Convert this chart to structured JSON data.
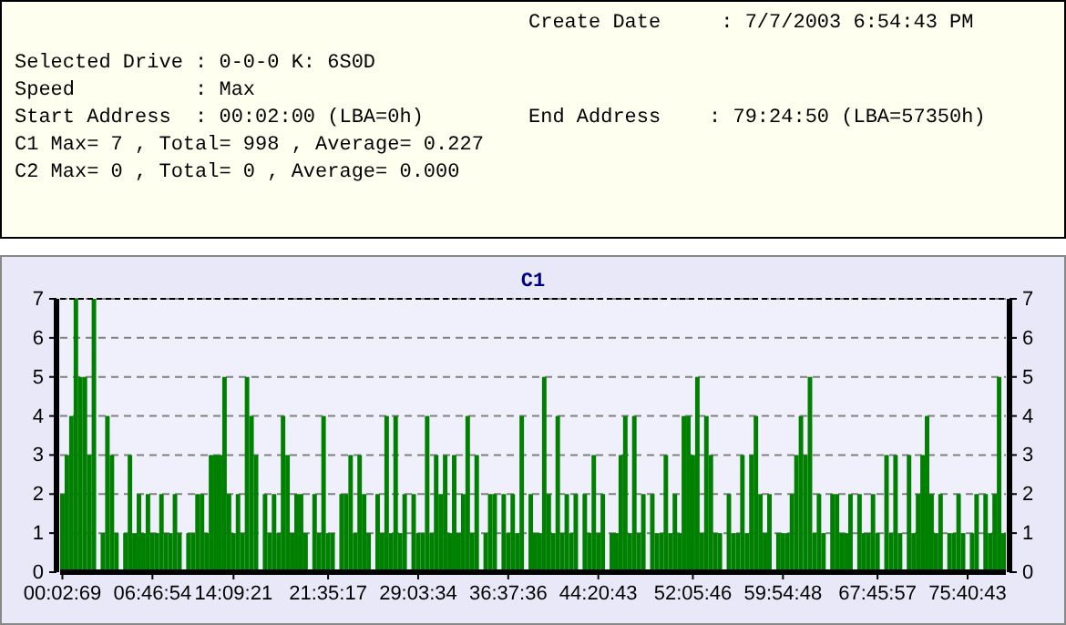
{
  "chart_data": {
    "type": "bar",
    "title": "C1",
    "annotations": [
      "Create Date     : 7/7/2003 6:54:43 PM",
      "Selected Drive : 0-0-0 K: 6S0D",
      "Speed          : Max",
      "Start Address  : 00:02:00 (LBA=0h)",
      "End Address    : 79:24:50 (LBA=57350h)",
      "C1 Max= 7 , Total= 998 , Average= 0.227",
      "C2 Max= 0 , Total= 0 , Average= 0.000"
    ],
    "categories": [
      "00:02:69",
      null,
      null,
      null,
      null,
      null,
      null,
      null,
      null,
      null,
      null,
      null,
      null,
      null,
      null,
      null,
      null,
      null,
      null,
      null,
      "06:46:54",
      null,
      null,
      null,
      null,
      null,
      null,
      null,
      null,
      null,
      null,
      null,
      null,
      null,
      null,
      null,
      null,
      null,
      "14:09:21",
      null,
      null,
      null,
      null,
      null,
      null,
      null,
      null,
      null,
      null,
      null,
      null,
      null,
      null,
      null,
      null,
      null,
      null,
      null,
      null,
      "21:35:17",
      null,
      null,
      null,
      null,
      null,
      null,
      null,
      null,
      null,
      null,
      null,
      null,
      null,
      null,
      null,
      null,
      null,
      null,
      null,
      "29:03:34",
      null,
      null,
      null,
      null,
      null,
      null,
      null,
      null,
      null,
      null,
      null,
      null,
      null,
      null,
      null,
      null,
      null,
      null,
      null,
      "36:37:36",
      null,
      null,
      null,
      null,
      null,
      null,
      null,
      null,
      null,
      null,
      null,
      null,
      null,
      null,
      null,
      null,
      null,
      null,
      null,
      "44:20:43",
      null,
      null,
      null,
      null,
      null,
      null,
      null,
      null,
      null,
      null,
      null,
      null,
      null,
      null,
      null,
      null,
      null,
      null,
      null,
      null,
      "52:05:46",
      null,
      null,
      null,
      null,
      null,
      null,
      null,
      null,
      null,
      null,
      null,
      null,
      null,
      null,
      null,
      null,
      null,
      null,
      null,
      "59:54:48",
      null,
      null,
      null,
      null,
      null,
      null,
      null,
      null,
      null,
      null,
      null,
      null,
      null,
      null,
      null,
      null,
      null,
      null,
      null,
      null,
      "67:45:57",
      null,
      null,
      null,
      null,
      null,
      null,
      null,
      null,
      null,
      null,
      null,
      null,
      null,
      null,
      null,
      null,
      null,
      null,
      null,
      "75:40:43",
      null,
      null,
      null,
      null,
      null,
      null,
      null,
      null
    ],
    "values": [
      2,
      3,
      4,
      7,
      5,
      5,
      3,
      7,
      0,
      1,
      4,
      3,
      1,
      0,
      1,
      3,
      1,
      2,
      1,
      2,
      1,
      1,
      2,
      1,
      1,
      2,
      1,
      0,
      1,
      1,
      2,
      2,
      1,
      3,
      3,
      3,
      5,
      2,
      1,
      2,
      1,
      5,
      4,
      3,
      0,
      2,
      1,
      2,
      1,
      4,
      3,
      1,
      2,
      2,
      1,
      0,
      2,
      1,
      4,
      1,
      1,
      0,
      2,
      2,
      3,
      1,
      3,
      2,
      1,
      0,
      2,
      1,
      4,
      1,
      4,
      1,
      2,
      0,
      2,
      1,
      1,
      4,
      1,
      3,
      2,
      3,
      1,
      3,
      1,
      2,
      4,
      1,
      3,
      0,
      1,
      2,
      2,
      0,
      2,
      1,
      2,
      1,
      4,
      0,
      2,
      1,
      1,
      5,
      2,
      1,
      4,
      1,
      2,
      1,
      2,
      0,
      2,
      1,
      3,
      1,
      2,
      0,
      1,
      1,
      3,
      4,
      1,
      4,
      1,
      2,
      0,
      2,
      1,
      1,
      3,
      1,
      2,
      1,
      4,
      4,
      3,
      5,
      1,
      4,
      3,
      1,
      1,
      0,
      2,
      1,
      1,
      3,
      1,
      3,
      4,
      2,
      1,
      2,
      0,
      1,
      1,
      1,
      2,
      3,
      4,
      3,
      5,
      1,
      2,
      1,
      0,
      2,
      2,
      1,
      1,
      2,
      0,
      2,
      1,
      1,
      2,
      1,
      0,
      3,
      1,
      3,
      1,
      0,
      3,
      1,
      2,
      3,
      4,
      2,
      1,
      2,
      0,
      1,
      1,
      2,
      1,
      0,
      1,
      2,
      0,
      2,
      1,
      2,
      5,
      1
    ],
    "color": "#008000",
    "ylim": [
      0,
      7
    ],
    "yticks": [
      0,
      1,
      2,
      3,
      4,
      5,
      6,
      7
    ],
    "y2lim": [
      0,
      7
    ],
    "y2ticks": [
      0,
      1,
      2,
      3,
      4,
      5,
      6,
      7
    ],
    "grid": "y"
  }
}
